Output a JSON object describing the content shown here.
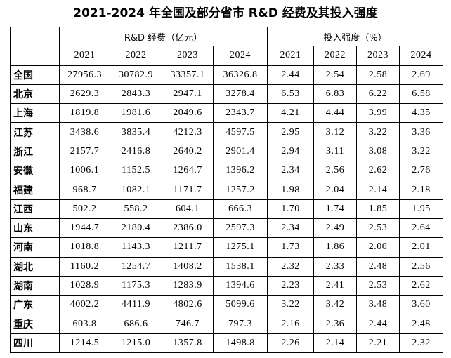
{
  "title": "2021-2024 年全国及部分省市 R&D 经费及其投入强度",
  "table": {
    "group_headers": [
      "R&D 经费（亿元）",
      "投入强度（%）"
    ],
    "year_headers": [
      "2021",
      "2022",
      "2023",
      "2024",
      "2021",
      "2022",
      "2023",
      "2024"
    ],
    "rows": [
      {
        "region": "全国",
        "cells": [
          "27956.3",
          "30782.9",
          "33357.1",
          "36326.8",
          "2.44",
          "2.54",
          "2.58",
          "2.69"
        ]
      },
      {
        "region": "北京",
        "cells": [
          "2629.3",
          "2843.3",
          "2947.1",
          "3278.4",
          "6.53",
          "6.83",
          "6.22",
          "6.58"
        ]
      },
      {
        "region": "上海",
        "cells": [
          "1819.8",
          "1981.6",
          "2049.6",
          "2343.7",
          "4.21",
          "4.44",
          "3.99",
          "4.35"
        ]
      },
      {
        "region": "江苏",
        "cells": [
          "3438.6",
          "3835.4",
          "4212.3",
          "4597.5",
          "2.95",
          "3.12",
          "3.22",
          "3.36"
        ]
      },
      {
        "region": "浙江",
        "cells": [
          "2157.7",
          "2416.8",
          "2640.2",
          "2901.4",
          "2.94",
          "3.11",
          "3.08",
          "3.22"
        ]
      },
      {
        "region": "安徽",
        "cells": [
          "1006.1",
          "1152.5",
          "1264.7",
          "1396.2",
          "2.34",
          "2.56",
          "2.62",
          "2.76"
        ]
      },
      {
        "region": "福建",
        "cells": [
          "968.7",
          "1082.1",
          "1171.7",
          "1257.2",
          "1.98",
          "2.04",
          "2.14",
          "2.18"
        ]
      },
      {
        "region": "江西",
        "cells": [
          "502.2",
          "558.2",
          "604.1",
          "666.3",
          "1.70",
          "1.74",
          "1.85",
          "1.95"
        ]
      },
      {
        "region": "山东",
        "cells": [
          "1944.7",
          "2180.4",
          "2386.0",
          "2597.3",
          "2.34",
          "2.49",
          "2.53",
          "2.64"
        ]
      },
      {
        "region": "河南",
        "cells": [
          "1018.8",
          "1143.3",
          "1211.7",
          "1275.1",
          "1.73",
          "1.86",
          "2.00",
          "2.01"
        ]
      },
      {
        "region": "湖北",
        "cells": [
          "1160.2",
          "1254.7",
          "1408.2",
          "1538.1",
          "2.32",
          "2.33",
          "2.48",
          "2.56"
        ]
      },
      {
        "region": "湖南",
        "cells": [
          "1028.9",
          "1175.3",
          "1283.9",
          "1394.6",
          "2.23",
          "2.41",
          "2.53",
          "2.62"
        ]
      },
      {
        "region": "广东",
        "cells": [
          "4002.2",
          "4411.9",
          "4802.6",
          "5099.6",
          "3.22",
          "3.42",
          "3.48",
          "3.60"
        ]
      },
      {
        "region": "重庆",
        "cells": [
          "603.8",
          "686.6",
          "746.7",
          "797.3",
          "2.16",
          "2.36",
          "2.44",
          "2.48"
        ]
      },
      {
        "region": "四川",
        "cells": [
          "1214.5",
          "1215.0",
          "1357.8",
          "1498.8",
          "2.26",
          "2.14",
          "2.21",
          "2.32"
        ]
      }
    ]
  }
}
